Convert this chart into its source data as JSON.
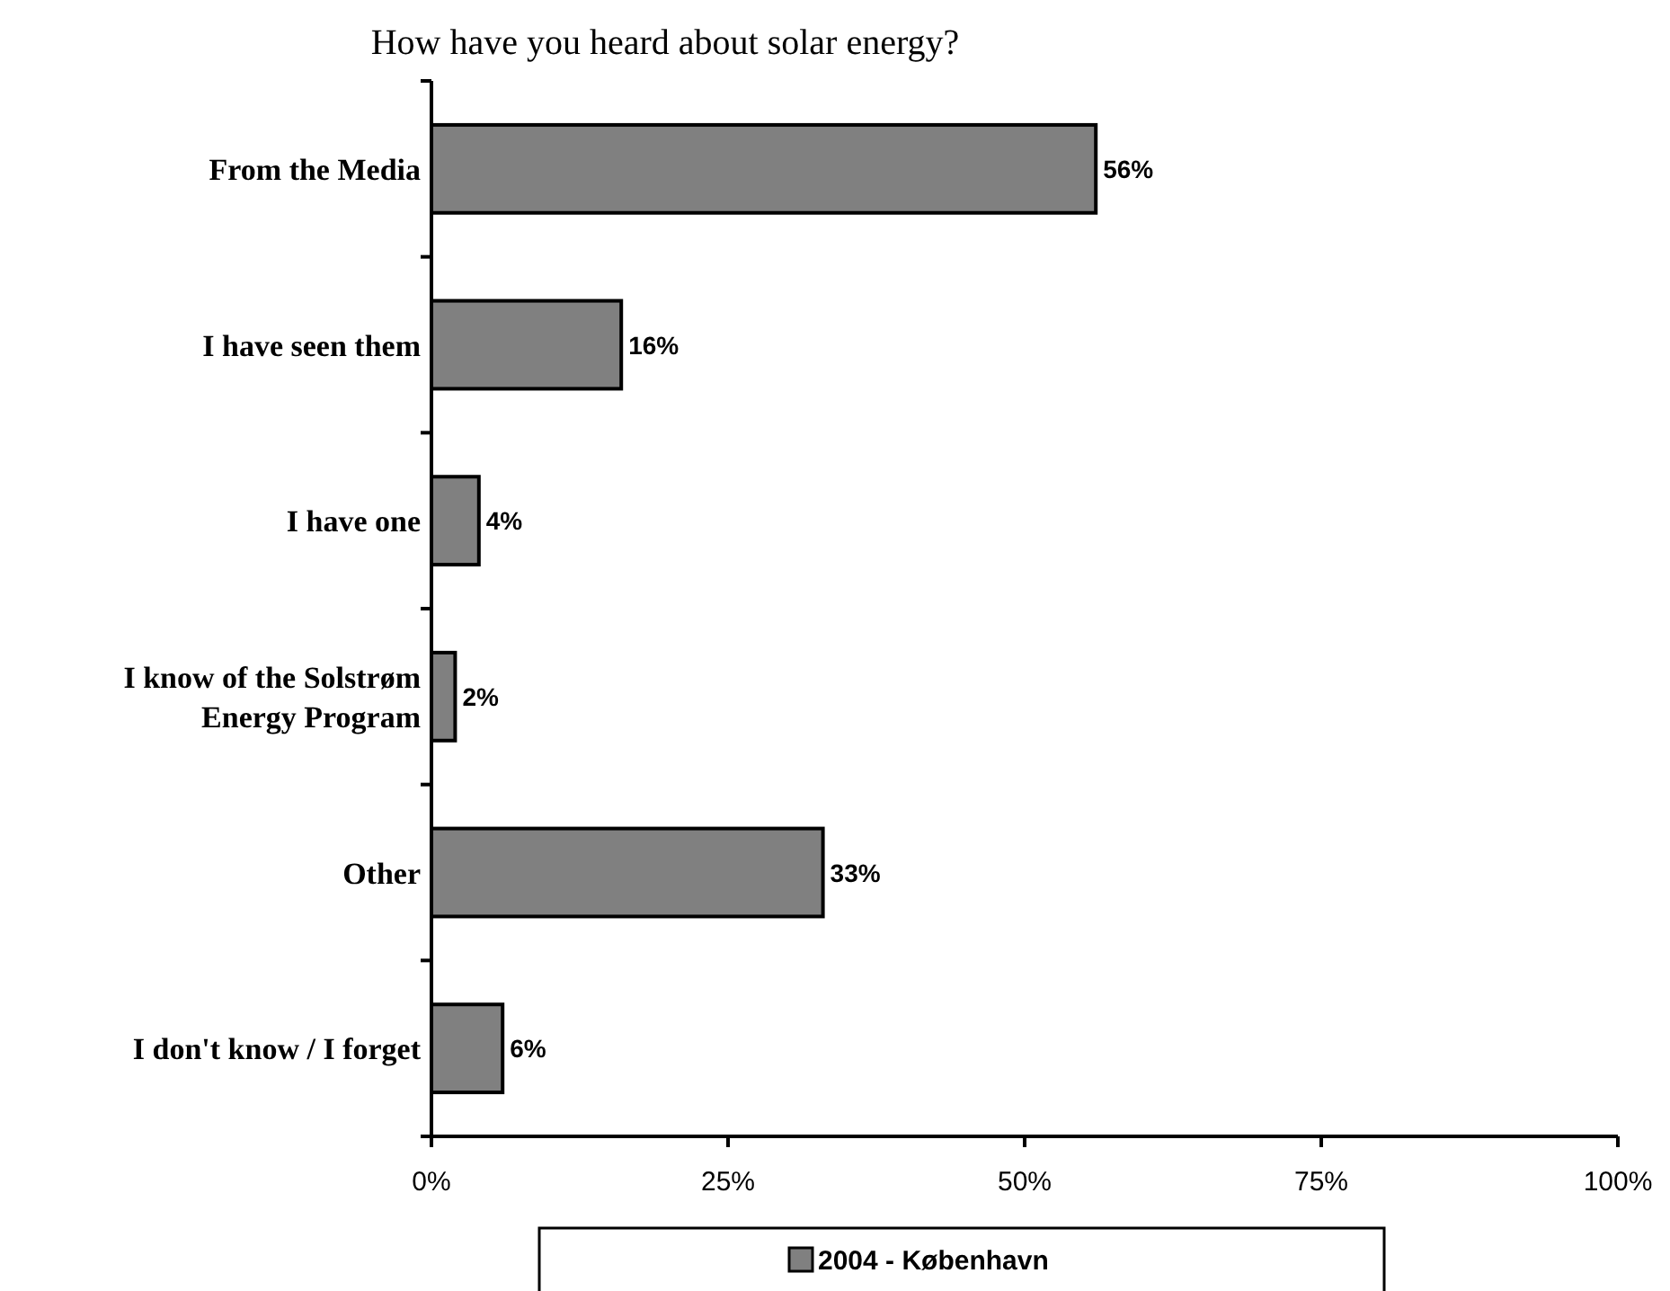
{
  "chart_data": {
    "type": "bar",
    "orientation": "horizontal",
    "title": "How have you heard about solar energy?",
    "categories": [
      "From the Media",
      "I have seen them",
      "I have one",
      "I know of the Solstrøm Energy Program",
      "Other",
      "I don't know / I forget"
    ],
    "series": [
      {
        "name": "2004 - København",
        "color": "#808080",
        "values": [
          56,
          16,
          4,
          2,
          33,
          6
        ],
        "value_labels": [
          "56%",
          "16%",
          "4%",
          "2%",
          "33%",
          "6%"
        ]
      }
    ],
    "xlim": [
      0,
      100
    ],
    "xticks": [
      {
        "value": 0,
        "label": "0%"
      },
      {
        "value": 25,
        "label": "25%"
      },
      {
        "value": 50,
        "label": "50%"
      },
      {
        "value": 75,
        "label": "75%"
      },
      {
        "value": 100,
        "label": "100%"
      }
    ],
    "grid": false,
    "legend": "bottom"
  }
}
